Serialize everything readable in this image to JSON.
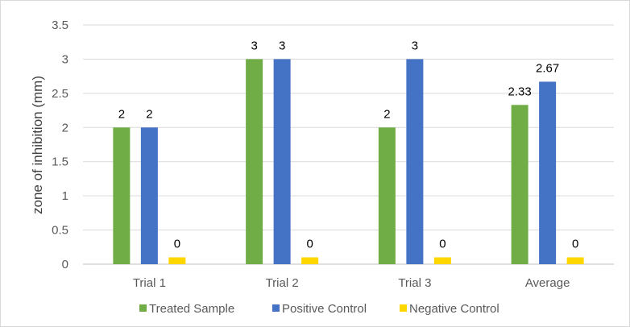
{
  "chart_data": {
    "type": "bar",
    "title": "",
    "xlabel": "",
    "ylabel": "zone of inhibition (mm)",
    "ylim": [
      0,
      3.5
    ],
    "yticks": [
      "0",
      "0.5",
      "1",
      "1.5",
      "2",
      "2.5",
      "3",
      "3.5"
    ],
    "grid": true,
    "legend_position": "bottom",
    "categories": [
      "Trial 1",
      "Trial 2",
      "Trial 3",
      "Average"
    ],
    "series": [
      {
        "name": "Treated Sample",
        "color": "#70ad47",
        "values": [
          2,
          3,
          2,
          2.33
        ],
        "labels": [
          "2",
          "3",
          "2",
          "2.33"
        ]
      },
      {
        "name": "Positive Control",
        "color": "#4472c4",
        "values": [
          2,
          3,
          3,
          2.67
        ],
        "labels": [
          "2",
          "3",
          "3",
          "2.67"
        ]
      },
      {
        "name": "Negative Control",
        "color": "#ffd700",
        "values": [
          0.1,
          0.1,
          0.1,
          0.1
        ],
        "labels": [
          "0",
          "0",
          "0",
          "0"
        ]
      }
    ]
  }
}
